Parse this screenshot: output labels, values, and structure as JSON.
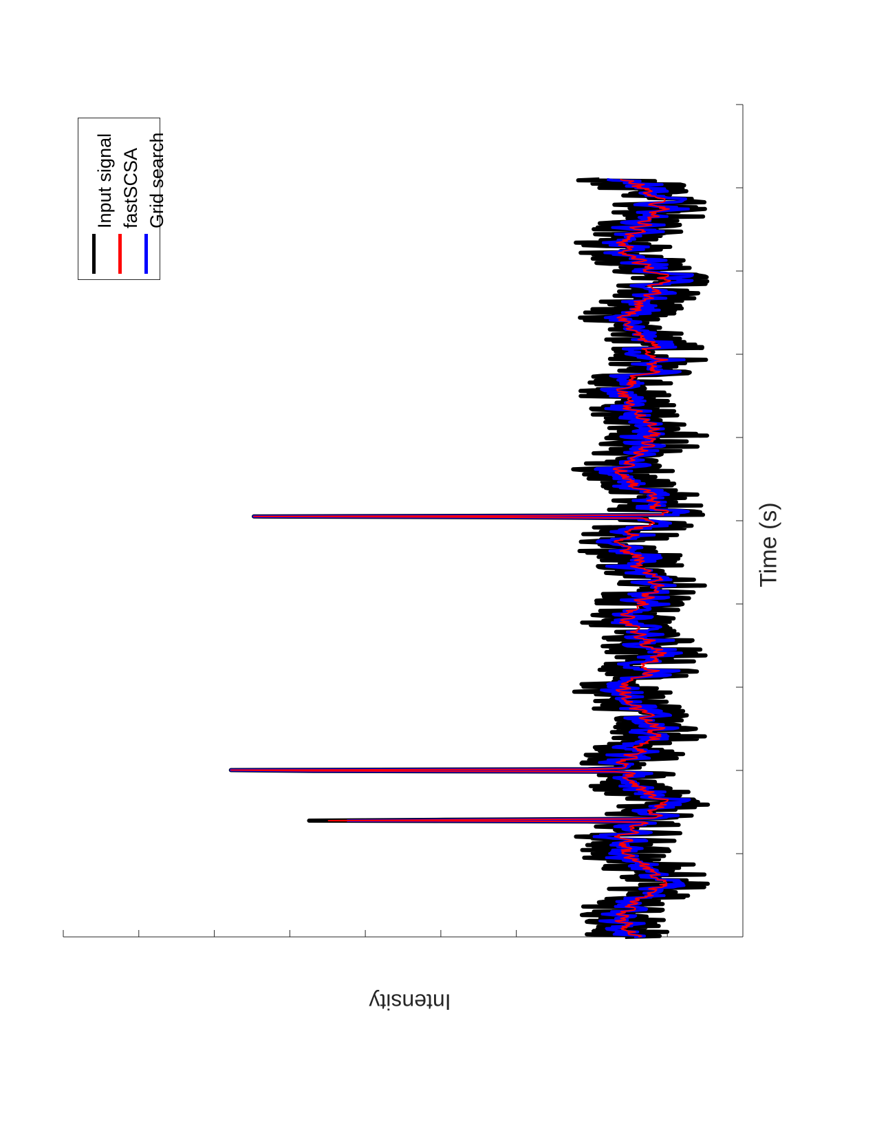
{
  "chart_data": {
    "type": "line",
    "title": "",
    "xlabel": "Time (s)",
    "ylabel": "Intensity",
    "xlim": [
      0,
      10
    ],
    "ylim": [
      0,
      10
    ],
    "grid": false,
    "legend_position": "top-right",
    "orientation": "page rotated 90 degrees",
    "series": [
      {
        "name": "Input signal",
        "color": "#000000",
        "line_width": "thick",
        "description_points": [
          [
            1.4,
            1.8
          ],
          [
            1.65,
            3.2
          ],
          [
            1.85,
            7.6
          ],
          [
            4.75,
            4.4
          ]
        ]
      },
      {
        "name": "fastSCSA",
        "color": "#ff0000",
        "line_width": "thin"
      },
      {
        "name": "Grid search",
        "color": "#0000ff",
        "line_width": "medium"
      }
    ],
    "peaks": [
      {
        "x": 1.4,
        "y_input": 8.35,
        "y_grid": 7.55,
        "y_fast": 7.95
      },
      {
        "x": 2.0,
        "y_input": 11.2,
        "y_grid": 11.2,
        "y_fast": 11.2
      },
      {
        "x": 5.05,
        "y_input": 7.85,
        "y_grid": 7.85,
        "y_fast": 7.85
      }
    ],
    "baseline_level": 1.5,
    "noise_amplitude": 0.75
  }
}
